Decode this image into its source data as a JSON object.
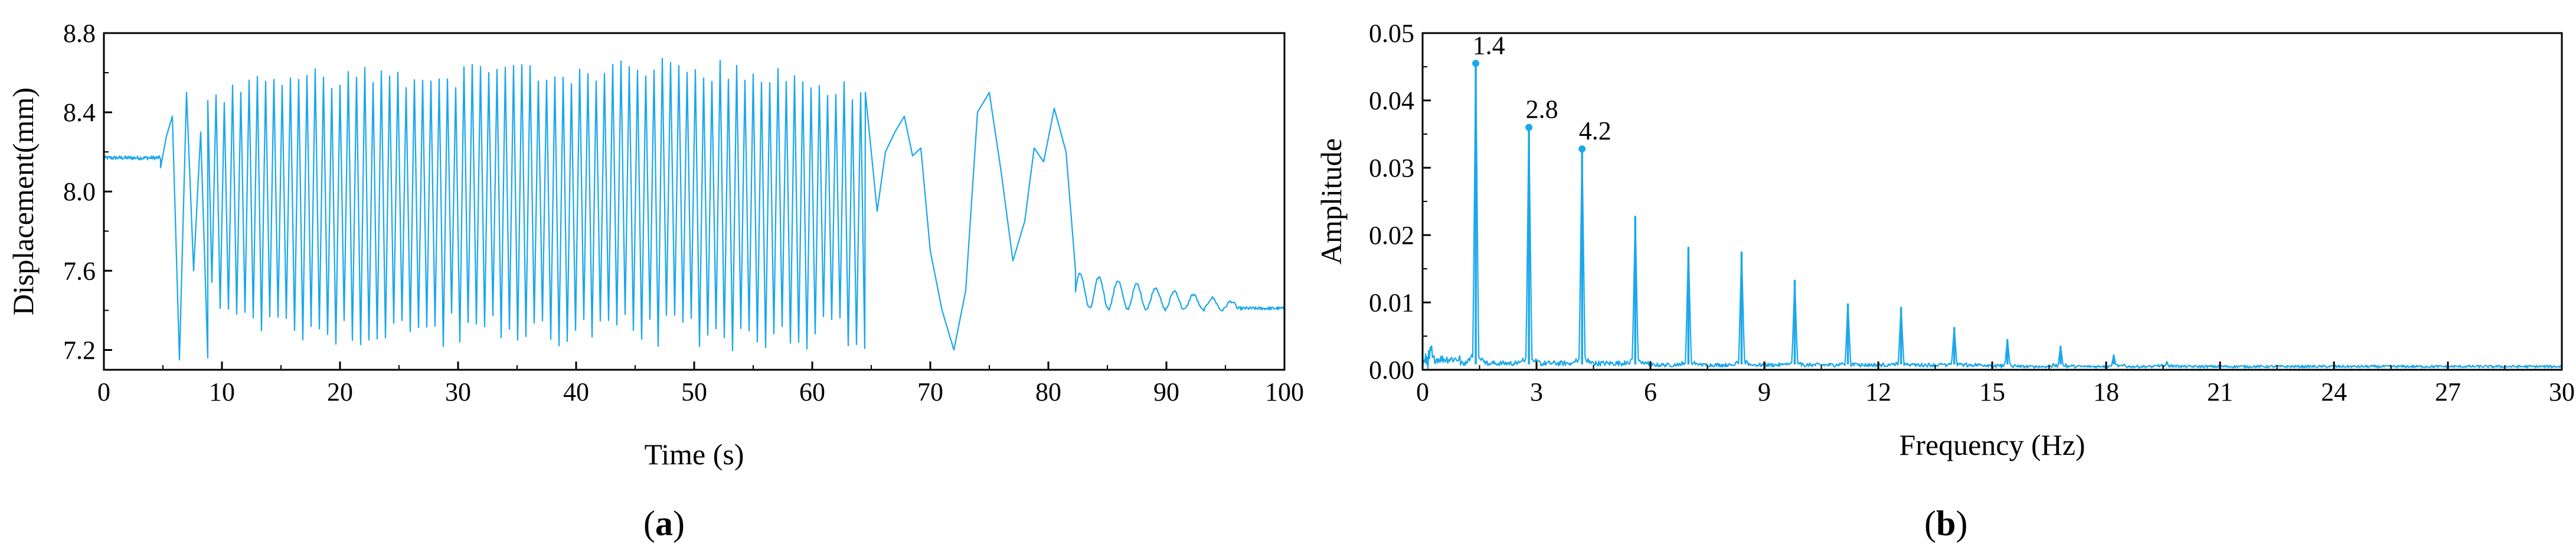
{
  "colors": {
    "series": "#1aa7ec",
    "axis": "#000000"
  },
  "chart_data": [
    {
      "id": "a",
      "type": "line",
      "panel_label": "a",
      "title": "",
      "xlabel": "Time (s)",
      "ylabel": "Displacement(mm)",
      "xlim": [
        0,
        100
      ],
      "ylim": [
        7.1,
        8.8
      ],
      "xticks": [
        0,
        10,
        20,
        30,
        40,
        50,
        60,
        70,
        80,
        90,
        100
      ],
      "yticks": [
        7.2,
        7.6,
        8.0,
        8.4,
        8.8
      ],
      "yticks_labels": [
        "7.2",
        "7.6",
        "8.0",
        "8.4",
        "8.8"
      ],
      "series": [
        {
          "segments": [
            {
              "kind": "flat",
              "x": [
                0,
                4.8
              ],
              "value": 8.17,
              "noise": 0.01
            },
            {
              "kind": "points",
              "x": [
                4.8,
                5.3,
                5.8,
                6.4,
                7.0,
                7.6,
                8.2,
                8.8
              ],
              "y": [
                8.12,
                8.28,
                8.38,
                7.15,
                8.5,
                7.6,
                8.3,
                7.16
              ]
            },
            {
              "kind": "oscillation",
              "x": [
                8.8,
                64.5
              ],
              "period": 0.7,
              "upper": [
                [
                  8.8,
                  8.45
                ],
                [
                  15,
                  8.58
                ],
                [
                  30,
                  8.58
                ],
                [
                  50,
                  8.62
                ],
                [
                  60,
                  8.55
                ],
                [
                  64.5,
                  8.5
                ]
              ],
              "lower": [
                [
                  8.8,
                  7.55
                ],
                [
                  12,
                  7.35
                ],
                [
                  20,
                  7.3
                ],
                [
                  40,
                  7.3
                ],
                [
                  55,
                  7.28
                ],
                [
                  62,
                  7.3
                ],
                [
                  64.5,
                  7.2
                ]
              ]
            },
            {
              "kind": "points",
              "x": [
                64.5,
                65.5,
                66.2,
                67,
                67.8,
                68.5,
                69.2,
                70,
                71,
                72,
                73,
                74,
                75,
                76,
                77,
                78,
                78.8,
                79.6,
                80.5,
                81.5,
                82.3
              ],
              "y": [
                8.5,
                7.9,
                8.2,
                8.3,
                8.38,
                8.18,
                8.22,
                7.7,
                7.4,
                7.2,
                7.5,
                8.4,
                8.5,
                8.1,
                7.65,
                7.85,
                8.22,
                8.15,
                8.42,
                8.2,
                7.6
              ]
            },
            {
              "kind": "decay",
              "x": [
                82.3,
                96
              ],
              "center": 7.5,
              "amp_start": 0.09,
              "amp_end": 0.02,
              "period": 1.6,
              "end_value": 7.42
            },
            {
              "kind": "flat",
              "x": [
                96,
                100
              ],
              "value": 7.41,
              "noise": 0.008
            }
          ]
        }
      ]
    },
    {
      "id": "b",
      "type": "line",
      "panel_label": "b",
      "title": "",
      "xlabel": "Frequency (Hz)",
      "ylabel": "Amplitude",
      "xlim": [
        0,
        30
      ],
      "ylim": [
        0,
        0.05
      ],
      "xticks": [
        0,
        3,
        6,
        9,
        12,
        15,
        18,
        21,
        24,
        27,
        30
      ],
      "yticks": [
        0,
        0.01,
        0.02,
        0.03,
        0.04,
        0.05
      ],
      "yticks_labels": [
        "0.00",
        "0.01",
        "0.02",
        "0.03",
        "0.04",
        "0.05"
      ],
      "peaks": [
        {
          "x": 1.4,
          "y": 0.0455,
          "label": "1.4"
        },
        {
          "x": 2.8,
          "y": 0.036,
          "label": "2.8"
        },
        {
          "x": 4.2,
          "y": 0.0328,
          "label": "4.2"
        },
        {
          "x": 5.6,
          "y": 0.0228
        },
        {
          "x": 7.0,
          "y": 0.0182
        },
        {
          "x": 8.4,
          "y": 0.0175
        },
        {
          "x": 9.8,
          "y": 0.0133
        },
        {
          "x": 11.2,
          "y": 0.0098
        },
        {
          "x": 12.6,
          "y": 0.0093
        },
        {
          "x": 14.0,
          "y": 0.0063
        },
        {
          "x": 15.4,
          "y": 0.0045
        },
        {
          "x": 16.8,
          "y": 0.0035
        },
        {
          "x": 18.2,
          "y": 0.0022
        },
        {
          "x": 19.6,
          "y": 0.0012
        }
      ],
      "baseline": 0.0008
    }
  ]
}
